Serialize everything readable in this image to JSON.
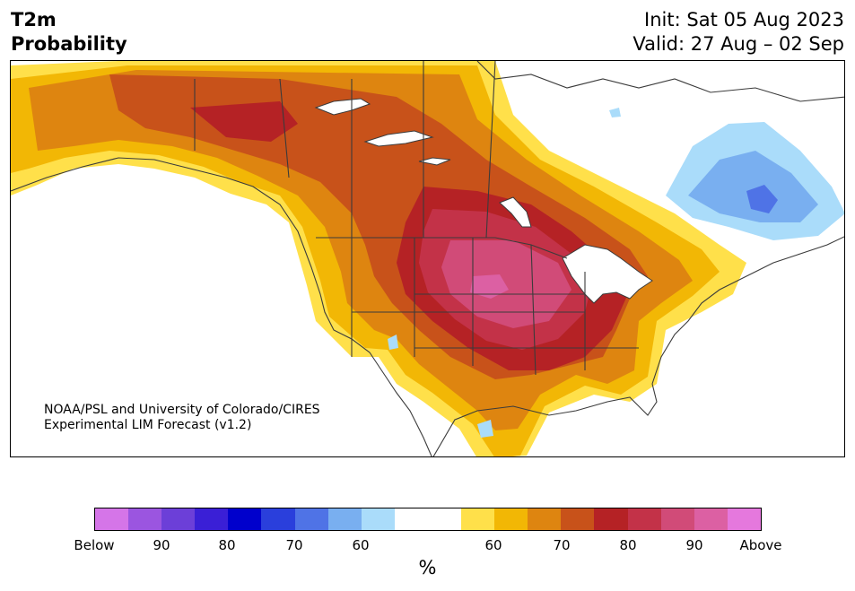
{
  "header": {
    "title_line1": "T2m",
    "title_line2": "Probability",
    "init": "Init: Sat 05 Aug 2023",
    "valid": "Valid: 27 Aug – 02 Sep"
  },
  "map": {
    "credit_line1": "NOAA/PSL and University of Colorado/CIRES",
    "credit_line2": "Experimental LIM Forecast (v1.2)"
  },
  "colorbar": {
    "colors": [
      "#d575e8",
      "#9b55e0",
      "#6c3fd8",
      "#3a1fd6",
      "#0000cc",
      "#2a3fdc",
      "#4f73e6",
      "#79aff0",
      "#aadcfa",
      "#ffffff",
      "#ffffff",
      "#ffe04a",
      "#f2b705",
      "#de8510",
      "#c8521a",
      "#b52225",
      "#c33248",
      "#d14b78",
      "#dc60a3",
      "#e578dd"
    ],
    "tick_labels": [
      "Below",
      "90",
      "80",
      "70",
      "60",
      "60",
      "70",
      "80",
      "90",
      "Above"
    ],
    "unit": "%"
  }
}
